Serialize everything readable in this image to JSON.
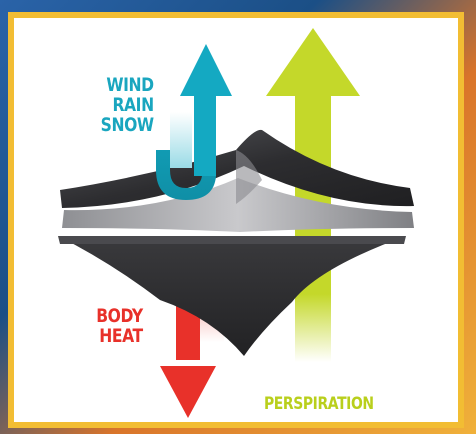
{
  "labels": {
    "external": [
      "WIND",
      "RAIN",
      "SNOW"
    ],
    "internal": [
      "BODY",
      "HEAT"
    ],
    "vapor": "PERSPIRATION"
  },
  "colors": {
    "external_arrow": "#14a9c2",
    "body_heat_arrow": "#e8312a",
    "perspiration_arrow": "#c4d82a",
    "frame": "#f2bd33",
    "membrane_dark": "#2c2c2e",
    "membrane_light": "#a9a9ad"
  },
  "icons": {
    "external": "up-arrow-icon",
    "body_heat": "down-arrow-icon",
    "perspiration": "up-arrow-icon"
  }
}
